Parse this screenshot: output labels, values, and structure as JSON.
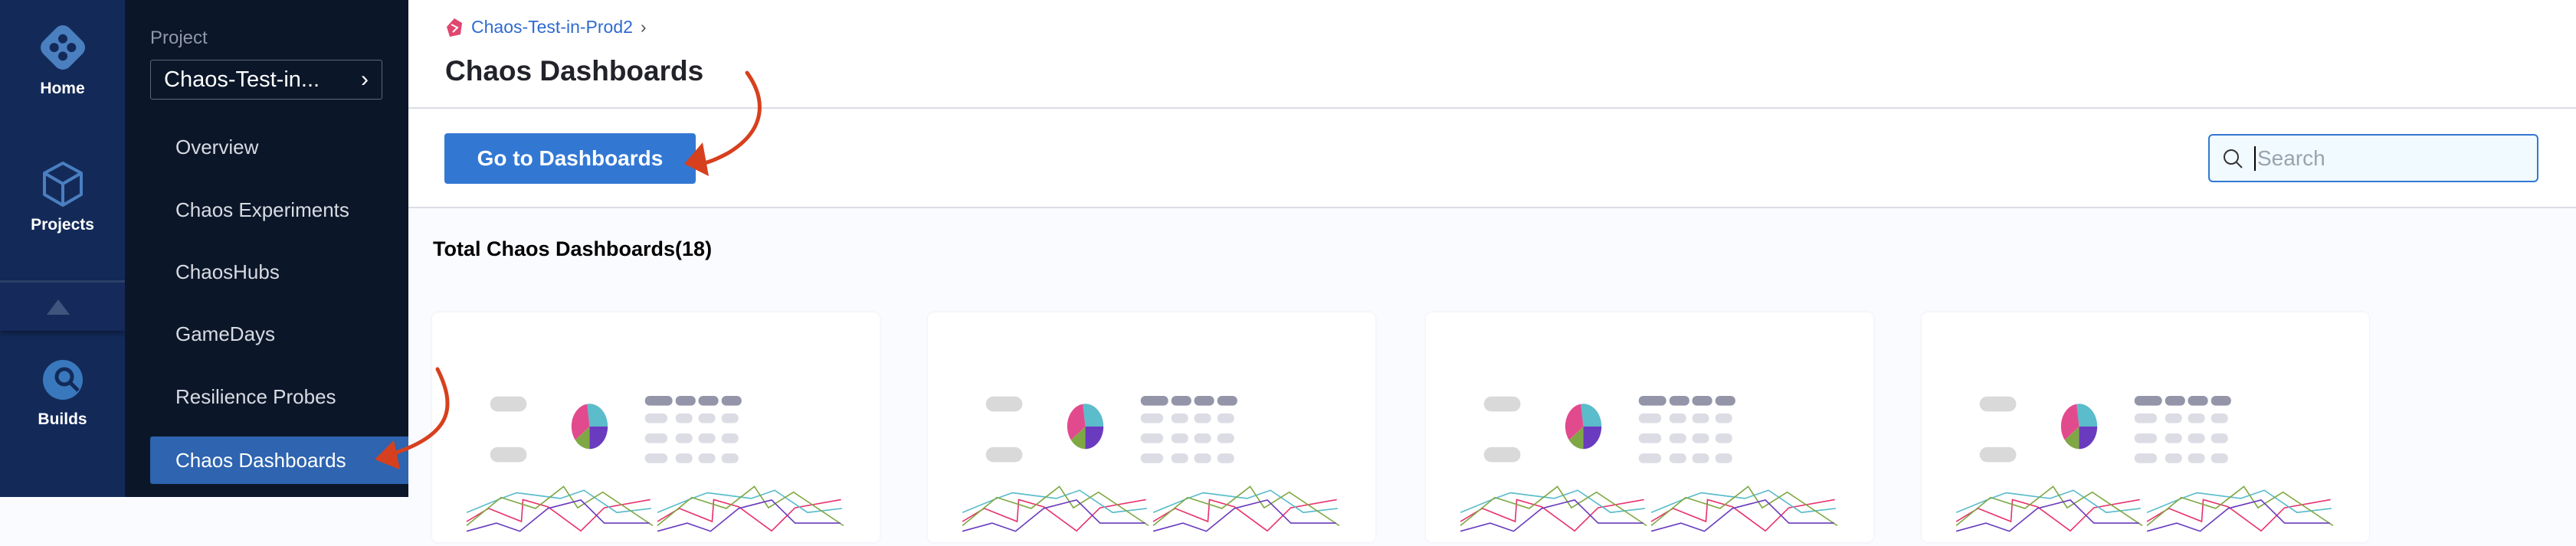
{
  "nav": {
    "items": [
      {
        "label": "Home",
        "icon": "harness-logo-icon"
      },
      {
        "label": "Projects",
        "icon": "cube-icon"
      },
      {
        "label": "Builds",
        "icon": "builds-icon"
      }
    ],
    "collapse_icon": "triangle-up-icon"
  },
  "sidebar": {
    "project_label": "Project",
    "project_value": "Chaos-Test-in...",
    "items": [
      {
        "label": "Overview"
      },
      {
        "label": "Chaos Experiments"
      },
      {
        "label": "ChaosHubs"
      },
      {
        "label": "GameDays"
      },
      {
        "label": "Resilience Probes"
      },
      {
        "label": "Chaos Dashboards",
        "active": true
      }
    ]
  },
  "header": {
    "breadcrumb": "Chaos-Test-in-Prod2",
    "title": "Chaos Dashboards"
  },
  "toolbar": {
    "go_button": "Go to Dashboards",
    "search_placeholder": "Search"
  },
  "content": {
    "total_label": "Total Chaos Dashboards(18)",
    "card_count_visible": 4
  },
  "colors": {
    "nav_bg": "#132a59",
    "sidebar_bg": "#0b1729",
    "active": "#2e64b0",
    "primary": "#3278d3",
    "annotation_arrow": "#d7401e"
  }
}
